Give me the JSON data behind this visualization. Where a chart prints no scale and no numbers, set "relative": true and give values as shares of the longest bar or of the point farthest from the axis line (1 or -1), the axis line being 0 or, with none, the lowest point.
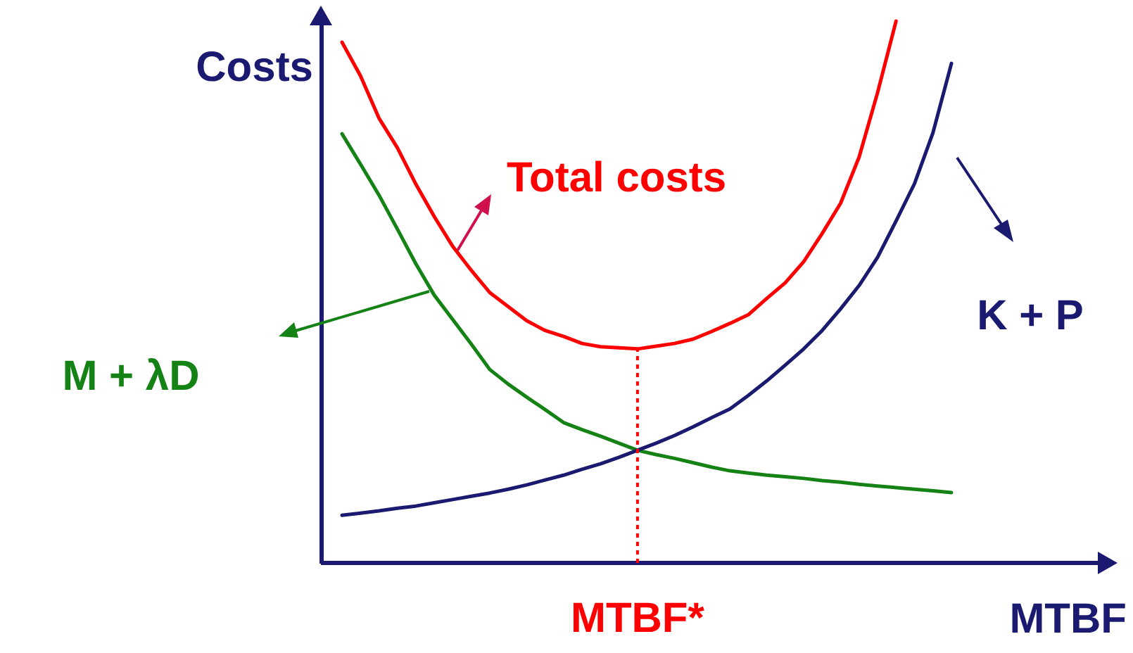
{
  "chart_data": {
    "type": "line",
    "relative": true,
    "xlabel": "MTBF",
    "ylabel": "Costs",
    "marker": "none",
    "line_style": "solid",
    "categories": [
      null,
      null,
      null,
      null,
      null,
      null,
      null,
      null,
      null,
      null,
      null,
      null,
      null,
      null,
      null,
      null,
      null,
      null,
      null,
      null,
      null,
      null,
      null,
      null,
      null,
      null,
      null,
      null,
      null,
      null,
      null,
      null,
      null,
      null
    ],
    "series": [
      {
        "name": "Total costs",
        "color": "#ff0000",
        "values": [
          0.961,
          0.899,
          0.821,
          0.766,
          0.699,
          0.639,
          0.584,
          0.54,
          0.499,
          0.473,
          0.447,
          0.429,
          0.418,
          0.405,
          0.399,
          0.397,
          0.395,
          0.4,
          0.405,
          0.413,
          0.427,
          0.442,
          0.458,
          0.488,
          0.517,
          0.556,
          0.608,
          0.664,
          0.749,
          0.868,
          1.0,
          null,
          null,
          null
        ]
      },
      {
        "name": "M + λD",
        "color": "#148214",
        "values": [
          0.792,
          0.736,
          0.679,
          0.616,
          0.552,
          0.494,
          0.449,
          0.404,
          0.357,
          0.33,
          0.306,
          0.283,
          0.259,
          0.246,
          0.234,
          0.221,
          0.208,
          0.2,
          0.193,
          0.185,
          0.177,
          0.17,
          0.166,
          0.162,
          0.159,
          0.156,
          0.152,
          0.149,
          0.145,
          0.142,
          0.139,
          0.136,
          0.133,
          0.13
        ]
      },
      {
        "name": "K + P",
        "color": "#1a1a70",
        "values": [
          0.088,
          0.092,
          0.096,
          0.101,
          0.105,
          0.111,
          0.117,
          0.123,
          0.129,
          0.136,
          0.144,
          0.153,
          0.162,
          0.173,
          0.183,
          0.195,
          0.208,
          0.221,
          0.235,
          0.251,
          0.268,
          0.284,
          0.309,
          0.336,
          0.365,
          0.395,
          0.429,
          0.469,
          0.512,
          0.564,
          0.631,
          0.7,
          0.794,
          0.922
        ]
      }
    ],
    "annotations": [
      {
        "text": "MTBF*",
        "y": 0.395
      }
    ]
  }
}
